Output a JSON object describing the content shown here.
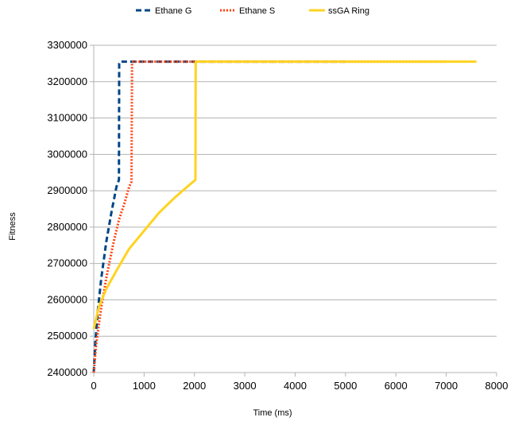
{
  "chart_data": {
    "type": "line",
    "title": "",
    "xlabel": "Time (ms)",
    "ylabel": "Fitness",
    "xlim": [
      0,
      8000
    ],
    "ylim": [
      2400000,
      3300000
    ],
    "x_ticks": [
      0,
      1000,
      2000,
      3000,
      4000,
      5000,
      6000,
      7000,
      8000
    ],
    "y_ticks": [
      2400000,
      2500000,
      2600000,
      2700000,
      2800000,
      2900000,
      3000000,
      3100000,
      3200000,
      3300000
    ],
    "x_tick_labels": [
      "0",
      "1000",
      "2000",
      "3000",
      "4000",
      "5000",
      "6000",
      "7000",
      "8000"
    ],
    "y_tick_labels": [
      "2400000",
      "2500000",
      "2600000",
      "2700000",
      "2800000",
      "2900000",
      "3000000",
      "3100000",
      "3200000",
      "3300000"
    ],
    "grid": "horizontal",
    "legend_position": "top",
    "series": [
      {
        "name": "Ethane G",
        "color": "#004586",
        "style": "dashed",
        "points": [
          [
            0,
            2400000
          ],
          [
            30,
            2480000
          ],
          [
            80,
            2570000
          ],
          [
            150,
            2660000
          ],
          [
            250,
            2760000
          ],
          [
            350,
            2840000
          ],
          [
            450,
            2910000
          ],
          [
            500,
            2930000
          ],
          [
            505,
            3250000
          ],
          [
            520,
            3255000
          ],
          [
            5000,
            3255000
          ]
        ]
      },
      {
        "name": "Ethane S",
        "color": "#ff420e",
        "style": "dotted",
        "points": [
          [
            0,
            2400000
          ],
          [
            50,
            2480000
          ],
          [
            150,
            2580000
          ],
          [
            250,
            2660000
          ],
          [
            380,
            2750000
          ],
          [
            500,
            2820000
          ],
          [
            620,
            2870000
          ],
          [
            700,
            2910000
          ],
          [
            750,
            2925000
          ],
          [
            760,
            3250000
          ],
          [
            780,
            3255000
          ],
          [
            7000,
            3255000
          ]
        ]
      },
      {
        "name": "ssGA Ring",
        "color": "#ffd320",
        "style": "solid",
        "points": [
          [
            0,
            2520000
          ],
          [
            100,
            2580000
          ],
          [
            250,
            2630000
          ],
          [
            450,
            2680000
          ],
          [
            700,
            2740000
          ],
          [
            1000,
            2790000
          ],
          [
            1300,
            2840000
          ],
          [
            1600,
            2880000
          ],
          [
            1850,
            2910000
          ],
          [
            2020,
            2930000
          ],
          [
            2025,
            3255000
          ],
          [
            7600,
            3255000
          ]
        ]
      }
    ]
  }
}
